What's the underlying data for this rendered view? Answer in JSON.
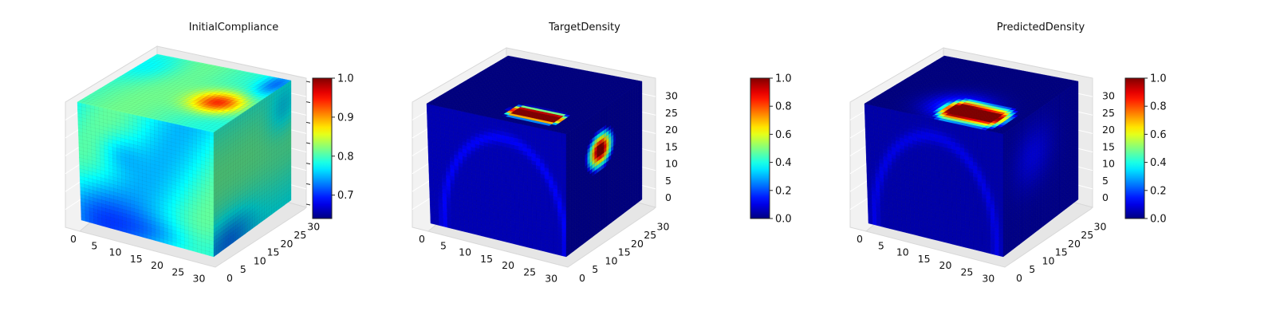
{
  "chart_data": [
    {
      "type": "heatmap",
      "title": "InitialCompliance",
      "xlabel": "",
      "ylabel": "",
      "zlabel": "",
      "x_ticks": [
        "0",
        "5",
        "10",
        "15",
        "20",
        "25",
        "30"
      ],
      "y_ticks": [
        "0",
        "5",
        "10",
        "15",
        "20",
        "25",
        "30"
      ],
      "z_ticks": [],
      "xlim": [
        0,
        32
      ],
      "ylim": [
        0,
        32
      ],
      "zlim": [
        0,
        32
      ],
      "colorbar": {
        "min": 0.64,
        "max": 1.0,
        "ticks": [
          "0.7",
          "0.8",
          "0.9",
          "1.0"
        ],
        "tick_values": [
          0.7,
          0.8,
          0.9,
          1.0
        ],
        "colormap": "jet"
      },
      "faces": {
        "front": "mostly ~0.76-0.80, darker (~0.70) bottom-left",
        "top": "~0.80 with a ~0.95 hotspot near the far right",
        "right": "~0.80 shaded"
      },
      "grid": true
    },
    {
      "type": "heatmap",
      "title": "TargetDensity",
      "xlabel": "",
      "ylabel": "",
      "zlabel": "",
      "x_ticks": [
        "0",
        "5",
        "10",
        "15",
        "20",
        "25",
        "30"
      ],
      "y_ticks": [
        "0",
        "5",
        "10",
        "15",
        "20",
        "25",
        "30"
      ],
      "z_ticks": [
        "0",
        "5",
        "10",
        "15",
        "20",
        "25",
        "30"
      ],
      "xlim": [
        0,
        32
      ],
      "ylim": [
        0,
        32
      ],
      "zlim": [
        0,
        32
      ],
      "colorbar": {
        "min": 0.0,
        "max": 1.0,
        "ticks": [
          "0.0",
          "0.2",
          "0.4",
          "0.6",
          "0.8",
          "1.0"
        ],
        "tick_values": [
          0,
          0.2,
          0.4,
          0.6,
          0.8,
          1.0
        ],
        "colormap": "jet"
      },
      "faces": {
        "front": "~0.0 with faint ~0.1 arch outline",
        "top": "1.0 elongated band near front-right corner",
        "right": "1.0 oval spot near top"
      },
      "grid": true
    },
    {
      "type": "heatmap",
      "title": "PredictedDensity",
      "xlabel": "",
      "ylabel": "",
      "zlabel": "",
      "x_ticks": [
        "0",
        "5",
        "10",
        "15",
        "20",
        "25",
        "30"
      ],
      "y_ticks": [
        "0",
        "5",
        "10",
        "15",
        "20",
        "25",
        "30"
      ],
      "z_ticks": [
        "0",
        "5",
        "10",
        "15",
        "20",
        "25",
        "30"
      ],
      "xlim": [
        0,
        32
      ],
      "ylim": [
        0,
        32
      ],
      "zlim": [
        0,
        32
      ],
      "colorbar": {
        "min": 0.0,
        "max": 1.0,
        "ticks": [
          "0.0",
          "0.2",
          "0.4",
          "0.6",
          "0.8",
          "1.0"
        ],
        "tick_values": [
          0,
          0.2,
          0.4,
          0.6,
          0.8,
          1.0
        ],
        "colormap": "jet"
      },
      "faces": {
        "front": "~0.0 with faint arch outline",
        "top": "1.0 band near front-right corner, blurred halo",
        "right": "~0.1 faint spot"
      },
      "grid": true
    }
  ]
}
